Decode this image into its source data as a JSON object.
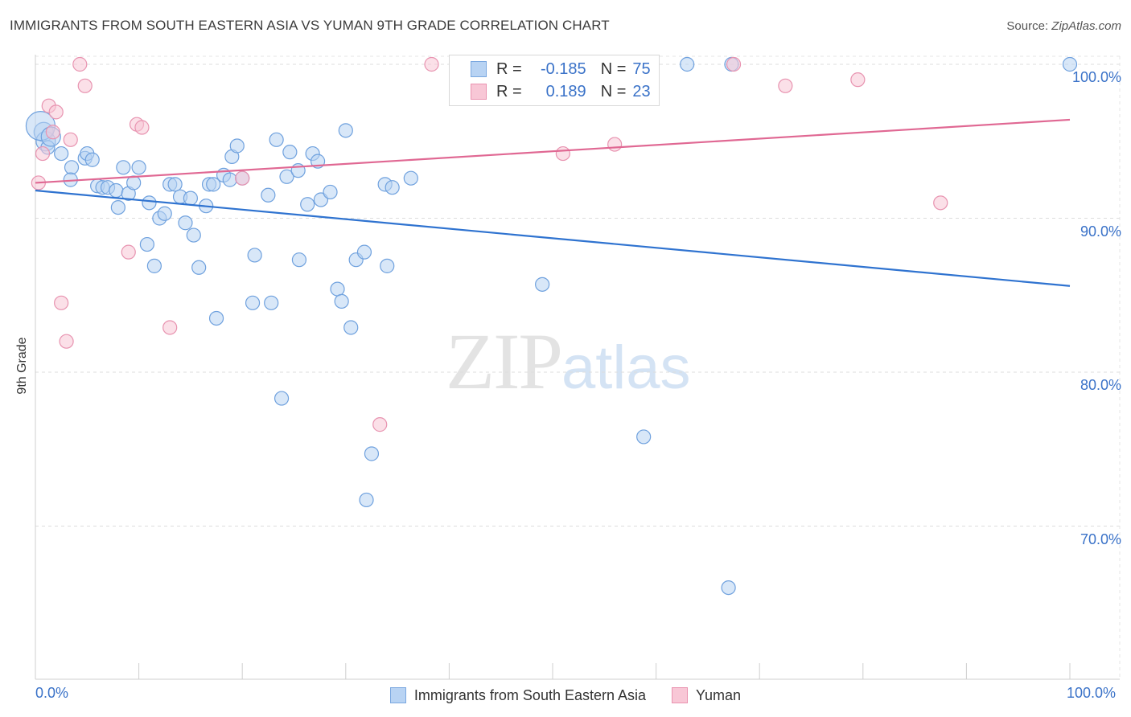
{
  "header": {
    "title": "IMMIGRANTS FROM SOUTH EASTERN ASIA VS YUMAN 9TH GRADE CORRELATION CHART",
    "source_label": "Source: ",
    "source_value": "ZipAtlas.com"
  },
  "watermark": {
    "zip": "ZIP",
    "atlas": "atlas"
  },
  "legend": {
    "rows": [
      {
        "r_label": "R =",
        "r_value": "-0.185",
        "n_label": "N =",
        "n_value": "75",
        "color": "#b8d3f3"
      },
      {
        "r_label": "R =",
        "r_value": "0.189",
        "n_label": "N =",
        "n_value": "23",
        "color": "#f8c7d6"
      }
    ]
  },
  "bottom_legend": {
    "items": [
      {
        "label": "Immigrants from South Eastern Asia",
        "color": "#b8d3f3"
      },
      {
        "label": "Yuman",
        "color": "#f8c7d6"
      }
    ]
  },
  "chart_data": {
    "type": "scatter",
    "title": "IMMIGRANTS FROM SOUTH EASTERN ASIA VS YUMAN 9TH GRADE CORRELATION CHART",
    "xlabel": "",
    "ylabel": "9th Grade",
    "xlim": [
      0,
      100
    ],
    "ylim": [
      60,
      103
    ],
    "x_tick_labels": [
      "0.0%",
      "100.0%"
    ],
    "y_ticks": [
      70,
      80,
      90,
      100
    ],
    "y_tick_labels": [
      "70.0%",
      "80.0%",
      "90.0%",
      "100.0%"
    ],
    "grid": true,
    "legend_position": "top-center",
    "series": [
      {
        "name": "Immigrants from South Eastern Asia",
        "color": "#6fa1de",
        "fill": "#b8d3f3",
        "trend": {
          "x": [
            0,
            100
          ],
          "y": [
            91.8,
            85.6
          ],
          "color": "#2f73d0"
        },
        "points": [
          [
            0.8,
            95.6
          ],
          [
            1.0,
            95.0
          ],
          [
            1.2,
            94.6
          ],
          [
            2.5,
            94.2
          ],
          [
            3.5,
            93.3
          ],
          [
            3.4,
            92.5
          ],
          [
            4.8,
            93.9
          ],
          [
            5.0,
            94.2
          ],
          [
            5.5,
            93.8
          ],
          [
            6.0,
            92.1
          ],
          [
            6.5,
            92.0
          ],
          [
            7.0,
            92.0
          ],
          [
            7.8,
            91.8
          ],
          [
            8.0,
            90.7
          ],
          [
            8.5,
            93.3
          ],
          [
            9.0,
            91.6
          ],
          [
            9.5,
            92.3
          ],
          [
            10.0,
            93.3
          ],
          [
            10.8,
            88.3
          ],
          [
            11.0,
            91.0
          ],
          [
            11.5,
            86.9
          ],
          [
            12.0,
            90.0
          ],
          [
            12.5,
            90.3
          ],
          [
            13.0,
            92.2
          ],
          [
            13.5,
            92.2
          ],
          [
            14.0,
            91.4
          ],
          [
            14.5,
            89.7
          ],
          [
            15.0,
            91.3
          ],
          [
            15.3,
            88.9
          ],
          [
            15.8,
            86.8
          ],
          [
            16.5,
            90.8
          ],
          [
            16.8,
            92.2
          ],
          [
            17.2,
            92.2
          ],
          [
            17.5,
            83.5
          ],
          [
            18.2,
            92.8
          ],
          [
            18.8,
            92.5
          ],
          [
            19.0,
            94.0
          ],
          [
            19.5,
            94.7
          ],
          [
            20.0,
            92.6
          ],
          [
            21.0,
            84.5
          ],
          [
            21.2,
            87.6
          ],
          [
            22.5,
            91.5
          ],
          [
            22.8,
            84.5
          ],
          [
            23.3,
            95.1
          ],
          [
            23.8,
            78.3
          ],
          [
            24.3,
            92.7
          ],
          [
            24.6,
            94.3
          ],
          [
            25.5,
            87.3
          ],
          [
            25.4,
            93.1
          ],
          [
            26.3,
            90.9
          ],
          [
            26.8,
            94.2
          ],
          [
            27.3,
            93.7
          ],
          [
            27.6,
            91.2
          ],
          [
            28.5,
            91.7
          ],
          [
            29.2,
            85.4
          ],
          [
            29.6,
            84.6
          ],
          [
            30.0,
            95.7
          ],
          [
            30.5,
            82.9
          ],
          [
            31.0,
            87.3
          ],
          [
            31.8,
            87.8
          ],
          [
            32.0,
            71.7
          ],
          [
            32.5,
            74.7
          ],
          [
            33.8,
            92.2
          ],
          [
            34.0,
            86.9
          ],
          [
            34.5,
            92.0
          ],
          [
            36.3,
            92.6
          ],
          [
            42.8,
            100.0
          ],
          [
            49.0,
            85.7
          ],
          [
            58.8,
            75.8
          ],
          [
            63.0,
            100.0
          ],
          [
            67.0,
            66.0
          ],
          [
            67.3,
            100.0
          ],
          [
            100.0,
            100.0
          ],
          [
            0.5,
            96.0
          ],
          [
            1.5,
            95.3
          ]
        ]
      },
      {
        "name": "Yuman",
        "color": "#e893b0",
        "fill": "#f8c7d6",
        "trend": {
          "x": [
            0,
            100
          ],
          "y": [
            92.3,
            96.4
          ],
          "color": "#e06893"
        },
        "points": [
          [
            0.3,
            92.3
          ],
          [
            0.7,
            94.2
          ],
          [
            1.3,
            97.3
          ],
          [
            1.7,
            95.6
          ],
          [
            2.0,
            96.9
          ],
          [
            2.5,
            84.5
          ],
          [
            3.0,
            82.0
          ],
          [
            3.4,
            95.1
          ],
          [
            4.3,
            100.0
          ],
          [
            4.8,
            98.6
          ],
          [
            9.0,
            87.8
          ],
          [
            9.8,
            96.1
          ],
          [
            10.3,
            95.9
          ],
          [
            13.0,
            82.9
          ],
          [
            20.0,
            92.6
          ],
          [
            33.3,
            76.6
          ],
          [
            38.3,
            100.0
          ],
          [
            51.0,
            94.2
          ],
          [
            56.0,
            94.8
          ],
          [
            67.5,
            100.0
          ],
          [
            72.5,
            98.6
          ],
          [
            79.5,
            99.0
          ],
          [
            87.5,
            91.0
          ]
        ]
      }
    ]
  }
}
